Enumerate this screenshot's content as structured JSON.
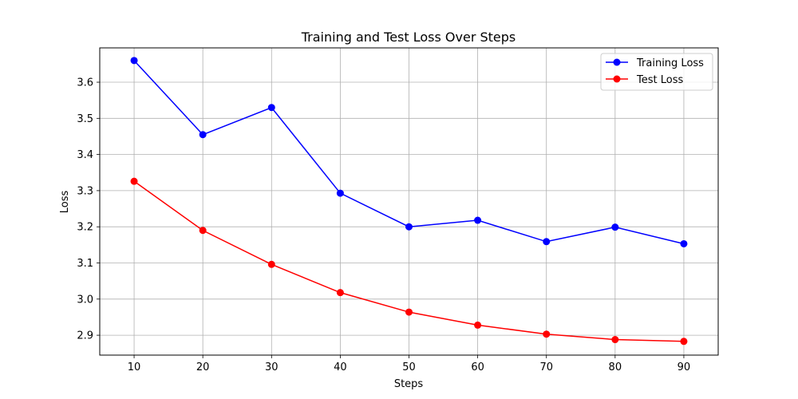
{
  "chart_data": {
    "type": "line",
    "title": "Training and Test Loss Over Steps",
    "xlabel": "Steps",
    "ylabel": "Loss",
    "x": [
      10,
      20,
      30,
      40,
      50,
      60,
      70,
      80,
      90
    ],
    "xlim": [
      5,
      95
    ],
    "ylim": [
      2.845,
      3.695
    ],
    "xticks": [
      "10",
      "20",
      "30",
      "40",
      "50",
      "60",
      "70",
      "80",
      "90"
    ],
    "yticks": [
      "2.9",
      "3.0",
      "3.1",
      "3.2",
      "3.3",
      "3.4",
      "3.5",
      "3.6"
    ],
    "ytick_values": [
      2.9,
      3.0,
      3.1,
      3.2,
      3.3,
      3.4,
      3.5,
      3.6
    ],
    "grid": true,
    "legend_position": "top-right",
    "series": [
      {
        "name": "Training Loss",
        "color": "#0000ff",
        "marker": "circle",
        "values": [
          3.66,
          3.455,
          3.53,
          3.293,
          3.2,
          3.218,
          3.159,
          3.199,
          3.153
        ]
      },
      {
        "name": "Test Loss",
        "color": "#ff0000",
        "marker": "circle",
        "values": [
          3.326,
          3.19,
          3.096,
          3.018,
          2.964,
          2.928,
          2.903,
          2.888,
          2.883
        ]
      }
    ]
  }
}
